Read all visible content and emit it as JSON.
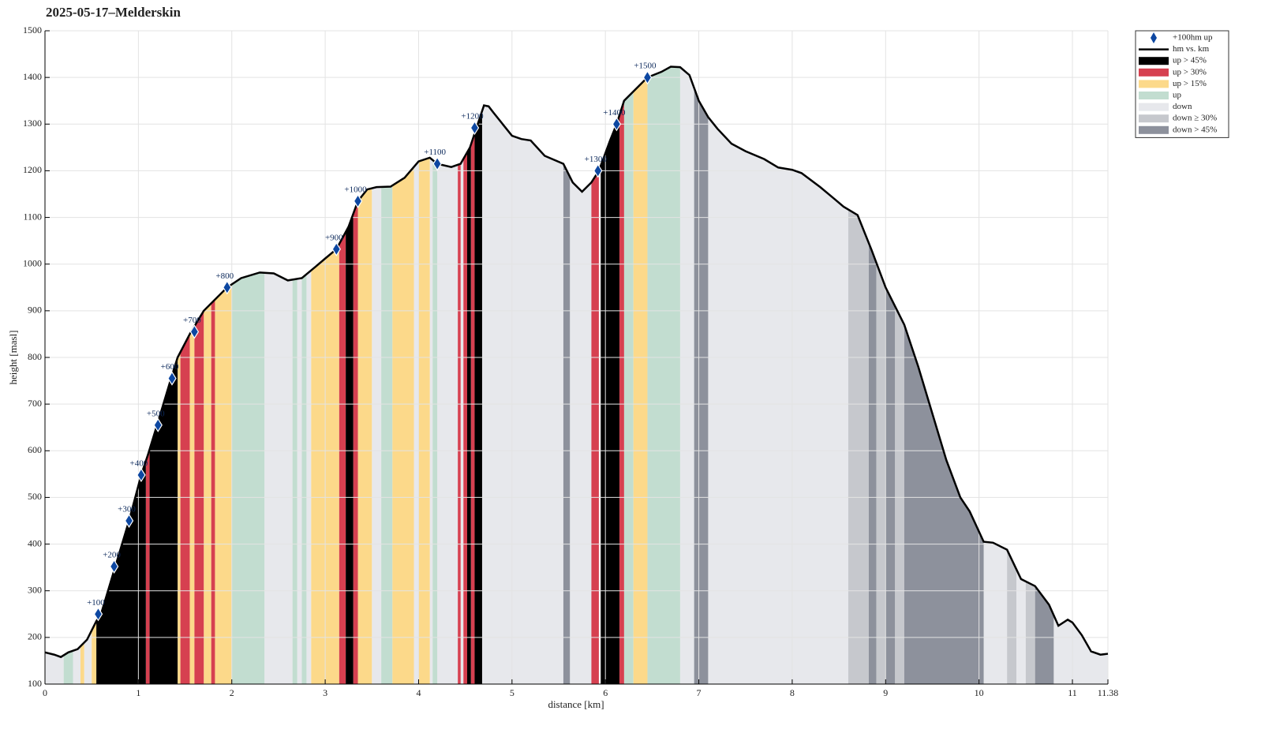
{
  "chart_data": {
    "type": "elevation-profile",
    "title": "2025-05-17–Melderskin",
    "xlabel": "distance [km]",
    "ylabel": "height [masl]",
    "xlim": [
      0,
      11.38
    ],
    "xticks": [
      0,
      1,
      2,
      3,
      4,
      5,
      6,
      7,
      8,
      9,
      10,
      11,
      11.38
    ],
    "ylim": [
      100,
      1500
    ],
    "yticks": [
      100,
      200,
      300,
      400,
      500,
      600,
      700,
      800,
      900,
      1000,
      1100,
      1200,
      1300,
      1400,
      1500
    ],
    "grid": true,
    "markers": {
      "name": "+100hm up",
      "color": "#0d47a1",
      "x": [
        0.57,
        0.74,
        0.9,
        1.03,
        1.21,
        1.36,
        1.6,
        1.95,
        3.12,
        3.35,
        4.2,
        4.6,
        5.92,
        6.12,
        6.45
      ],
      "values": [
        250,
        352,
        450,
        548,
        655,
        755,
        855,
        950,
        1032,
        1135,
        1215,
        1292,
        1200,
        1300,
        1400
      ],
      "labels": [
        "+100",
        "+200",
        "+300",
        "+400",
        "+500",
        "+600",
        "+700",
        "+800",
        "+900",
        "+1000",
        "+1100",
        "+1200",
        "+1300",
        "+1400",
        "+1500"
      ]
    },
    "profile": {
      "name": "hm vs. km",
      "color": "#000000",
      "x": [
        0,
        0.1,
        0.17,
        0.25,
        0.35,
        0.45,
        0.55,
        0.6,
        0.75,
        0.9,
        1.03,
        1.1,
        1.2,
        1.35,
        1.42,
        1.55,
        1.7,
        1.95,
        2.1,
        2.3,
        2.45,
        2.6,
        2.75,
        2.9,
        3.0,
        3.12,
        3.25,
        3.35,
        3.45,
        3.55,
        3.7,
        3.85,
        4.0,
        4.12,
        4.2,
        4.35,
        4.45,
        4.55,
        4.62,
        4.7,
        4.75,
        4.8,
        4.9,
        5.0,
        5.1,
        5.2,
        5.35,
        5.55,
        5.65,
        5.75,
        5.85,
        5.93,
        6.05,
        6.12,
        6.2,
        6.3,
        6.45,
        6.6,
        6.7,
        6.8,
        6.9,
        7.0,
        7.1,
        7.2,
        7.35,
        7.5,
        7.7,
        7.85,
        8.0,
        8.1,
        8.3,
        8.45,
        8.55,
        8.7,
        8.85,
        9.0,
        9.2,
        9.35,
        9.5,
        9.65,
        9.8,
        9.9,
        10.05,
        10.15,
        10.3,
        10.45,
        10.6,
        10.75,
        10.85,
        10.95,
        11.0,
        11.1,
        11.2,
        11.3,
        11.38
      ],
      "y": [
        168,
        163,
        158,
        168,
        175,
        195,
        235,
        250,
        350,
        450,
        548,
        590,
        655,
        755,
        800,
        850,
        900,
        950,
        970,
        982,
        980,
        965,
        970,
        995,
        1012,
        1032,
        1080,
        1135,
        1160,
        1165,
        1166,
        1185,
        1220,
        1228,
        1215,
        1208,
        1215,
        1250,
        1292,
        1340,
        1338,
        1325,
        1300,
        1275,
        1268,
        1265,
        1232,
        1215,
        1175,
        1155,
        1175,
        1200,
        1265,
        1300,
        1350,
        1370,
        1400,
        1412,
        1423,
        1422,
        1405,
        1350,
        1315,
        1290,
        1258,
        1242,
        1225,
        1207,
        1202,
        1195,
        1165,
        1140,
        1123,
        1105,
        1030,
        950,
        870,
        780,
        680,
        580,
        500,
        470,
        405,
        403,
        388,
        325,
        310,
        270,
        225,
        238,
        232,
        205,
        170,
        163,
        165
      ]
    },
    "series": [
      {
        "name": "up > 45%",
        "color": "#000000",
        "bands": [
          [
            0.55,
            1.08
          ],
          [
            1.12,
            1.42
          ],
          [
            3.22,
            3.3
          ],
          [
            4.52,
            4.56
          ],
          [
            4.6,
            4.68
          ],
          [
            5.95,
            6.15
          ]
        ]
      },
      {
        "name": "up > 30%",
        "color": "#d64050",
        "bands": [
          [
            1.08,
            1.12
          ],
          [
            1.45,
            1.55
          ],
          [
            1.6,
            1.7
          ],
          [
            1.78,
            1.82
          ],
          [
            3.15,
            3.22
          ],
          [
            3.3,
            3.35
          ],
          [
            4.42,
            4.45
          ],
          [
            4.48,
            4.52
          ],
          [
            4.56,
            4.6
          ],
          [
            5.85,
            5.93
          ],
          [
            6.15,
            6.2
          ]
        ]
      },
      {
        "name": "up > 15%",
        "color": "#fcd98a",
        "bands": [
          [
            0.38,
            0.42
          ],
          [
            0.5,
            0.55
          ],
          [
            1.42,
            1.45
          ],
          [
            1.55,
            1.6
          ],
          [
            1.7,
            1.78
          ],
          [
            1.82,
            2.0
          ],
          [
            2.85,
            3.15
          ],
          [
            3.35,
            3.5
          ],
          [
            3.72,
            3.95
          ],
          [
            4.0,
            4.12
          ],
          [
            6.3,
            6.45
          ]
        ]
      },
      {
        "name": "up",
        "color": "#c2ddd0",
        "bands": [
          [
            0.2,
            0.3
          ],
          [
            2.0,
            2.35
          ],
          [
            2.65,
            2.7
          ],
          [
            2.75,
            2.8
          ],
          [
            3.6,
            3.72
          ],
          [
            4.15,
            4.2
          ],
          [
            6.2,
            6.3
          ],
          [
            6.45,
            6.8
          ]
        ]
      },
      {
        "name": "down",
        "color": "#e7e8ec",
        "bands": [
          [
            0,
            0.2
          ],
          [
            0.3,
            0.38
          ],
          [
            0.42,
            0.5
          ],
          [
            2.35,
            2.65
          ],
          [
            2.7,
            2.75
          ],
          [
            2.8,
            2.85
          ],
          [
            3.5,
            3.6
          ],
          [
            3.95,
            4.0
          ],
          [
            4.12,
            4.15
          ],
          [
            4.2,
            4.42
          ],
          [
            4.45,
            4.48
          ],
          [
            4.68,
            5.55
          ],
          [
            5.62,
            5.85
          ],
          [
            6.8,
            6.95
          ],
          [
            7.1,
            8.6
          ],
          [
            10.05,
            10.3
          ],
          [
            10.4,
            10.5
          ],
          [
            10.8,
            11.38
          ]
        ]
      },
      {
        "name": "down ≥ 30%",
        "color": "#c6c8cd",
        "bands": [
          [
            8.6,
            8.82
          ],
          [
            8.9,
            9.0
          ],
          [
            9.1,
            9.2
          ],
          [
            10.3,
            10.4
          ],
          [
            10.5,
            10.6
          ]
        ]
      },
      {
        "name": "down > 45%",
        "color": "#8d919c",
        "bands": [
          [
            5.55,
            5.62
          ],
          [
            6.95,
            7.1
          ],
          [
            8.82,
            8.9
          ],
          [
            9.0,
            9.1
          ],
          [
            9.2,
            10.05
          ],
          [
            10.6,
            10.8
          ]
        ]
      }
    ]
  }
}
